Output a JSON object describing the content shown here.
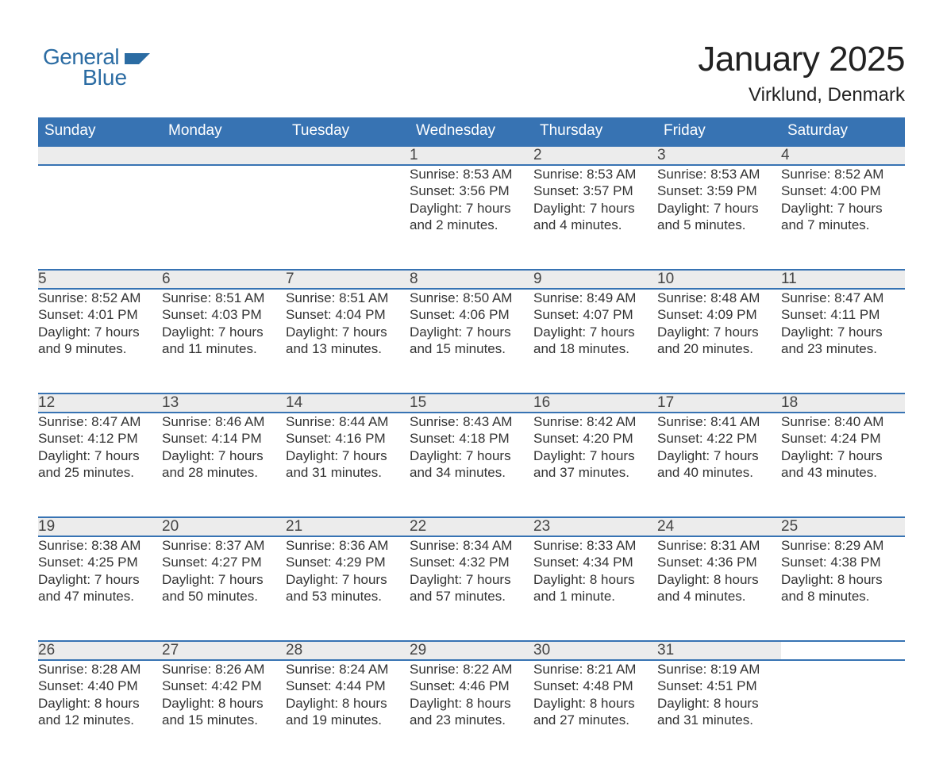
{
  "logo": {
    "line1": "General",
    "line2": "Blue",
    "color": "#2b6ca3"
  },
  "title": {
    "month_year": "January 2025",
    "location": "Virklund, Denmark"
  },
  "colors": {
    "header_bg": "#3773b3",
    "header_text": "#ffffff",
    "row_border": "#3773b3",
    "daynum_bg": "#ececec",
    "body_text": "#333333",
    "title_text": "#222222",
    "page_bg": "#ffffff"
  },
  "typography": {
    "title_fontsize": 44,
    "location_fontsize": 24,
    "header_fontsize": 19,
    "daynum_fontsize": 19,
    "detail_fontsize": 17
  },
  "calendar": {
    "type": "table",
    "columns": [
      "Sunday",
      "Monday",
      "Tuesday",
      "Wednesday",
      "Thursday",
      "Friday",
      "Saturday"
    ],
    "weeks": [
      [
        null,
        null,
        null,
        {
          "n": "1",
          "sr": "Sunrise: 8:53 AM",
          "ss": "Sunset: 3:56 PM",
          "d1": "Daylight: 7 hours",
          "d2": "and 2 minutes."
        },
        {
          "n": "2",
          "sr": "Sunrise: 8:53 AM",
          "ss": "Sunset: 3:57 PM",
          "d1": "Daylight: 7 hours",
          "d2": "and 4 minutes."
        },
        {
          "n": "3",
          "sr": "Sunrise: 8:53 AM",
          "ss": "Sunset: 3:59 PM",
          "d1": "Daylight: 7 hours",
          "d2": "and 5 minutes."
        },
        {
          "n": "4",
          "sr": "Sunrise: 8:52 AM",
          "ss": "Sunset: 4:00 PM",
          "d1": "Daylight: 7 hours",
          "d2": "and 7 minutes."
        }
      ],
      [
        {
          "n": "5",
          "sr": "Sunrise: 8:52 AM",
          "ss": "Sunset: 4:01 PM",
          "d1": "Daylight: 7 hours",
          "d2": "and 9 minutes."
        },
        {
          "n": "6",
          "sr": "Sunrise: 8:51 AM",
          "ss": "Sunset: 4:03 PM",
          "d1": "Daylight: 7 hours",
          "d2": "and 11 minutes."
        },
        {
          "n": "7",
          "sr": "Sunrise: 8:51 AM",
          "ss": "Sunset: 4:04 PM",
          "d1": "Daylight: 7 hours",
          "d2": "and 13 minutes."
        },
        {
          "n": "8",
          "sr": "Sunrise: 8:50 AM",
          "ss": "Sunset: 4:06 PM",
          "d1": "Daylight: 7 hours",
          "d2": "and 15 minutes."
        },
        {
          "n": "9",
          "sr": "Sunrise: 8:49 AM",
          "ss": "Sunset: 4:07 PM",
          "d1": "Daylight: 7 hours",
          "d2": "and 18 minutes."
        },
        {
          "n": "10",
          "sr": "Sunrise: 8:48 AM",
          "ss": "Sunset: 4:09 PM",
          "d1": "Daylight: 7 hours",
          "d2": "and 20 minutes."
        },
        {
          "n": "11",
          "sr": "Sunrise: 8:47 AM",
          "ss": "Sunset: 4:11 PM",
          "d1": "Daylight: 7 hours",
          "d2": "and 23 minutes."
        }
      ],
      [
        {
          "n": "12",
          "sr": "Sunrise: 8:47 AM",
          "ss": "Sunset: 4:12 PM",
          "d1": "Daylight: 7 hours",
          "d2": "and 25 minutes."
        },
        {
          "n": "13",
          "sr": "Sunrise: 8:46 AM",
          "ss": "Sunset: 4:14 PM",
          "d1": "Daylight: 7 hours",
          "d2": "and 28 minutes."
        },
        {
          "n": "14",
          "sr": "Sunrise: 8:44 AM",
          "ss": "Sunset: 4:16 PM",
          "d1": "Daylight: 7 hours",
          "d2": "and 31 minutes."
        },
        {
          "n": "15",
          "sr": "Sunrise: 8:43 AM",
          "ss": "Sunset: 4:18 PM",
          "d1": "Daylight: 7 hours",
          "d2": "and 34 minutes."
        },
        {
          "n": "16",
          "sr": "Sunrise: 8:42 AM",
          "ss": "Sunset: 4:20 PM",
          "d1": "Daylight: 7 hours",
          "d2": "and 37 minutes."
        },
        {
          "n": "17",
          "sr": "Sunrise: 8:41 AM",
          "ss": "Sunset: 4:22 PM",
          "d1": "Daylight: 7 hours",
          "d2": "and 40 minutes."
        },
        {
          "n": "18",
          "sr": "Sunrise: 8:40 AM",
          "ss": "Sunset: 4:24 PM",
          "d1": "Daylight: 7 hours",
          "d2": "and 43 minutes."
        }
      ],
      [
        {
          "n": "19",
          "sr": "Sunrise: 8:38 AM",
          "ss": "Sunset: 4:25 PM",
          "d1": "Daylight: 7 hours",
          "d2": "and 47 minutes."
        },
        {
          "n": "20",
          "sr": "Sunrise: 8:37 AM",
          "ss": "Sunset: 4:27 PM",
          "d1": "Daylight: 7 hours",
          "d2": "and 50 minutes."
        },
        {
          "n": "21",
          "sr": "Sunrise: 8:36 AM",
          "ss": "Sunset: 4:29 PM",
          "d1": "Daylight: 7 hours",
          "d2": "and 53 minutes."
        },
        {
          "n": "22",
          "sr": "Sunrise: 8:34 AM",
          "ss": "Sunset: 4:32 PM",
          "d1": "Daylight: 7 hours",
          "d2": "and 57 minutes."
        },
        {
          "n": "23",
          "sr": "Sunrise: 8:33 AM",
          "ss": "Sunset: 4:34 PM",
          "d1": "Daylight: 8 hours",
          "d2": "and 1 minute."
        },
        {
          "n": "24",
          "sr": "Sunrise: 8:31 AM",
          "ss": "Sunset: 4:36 PM",
          "d1": "Daylight: 8 hours",
          "d2": "and 4 minutes."
        },
        {
          "n": "25",
          "sr": "Sunrise: 8:29 AM",
          "ss": "Sunset: 4:38 PM",
          "d1": "Daylight: 8 hours",
          "d2": "and 8 minutes."
        }
      ],
      [
        {
          "n": "26",
          "sr": "Sunrise: 8:28 AM",
          "ss": "Sunset: 4:40 PM",
          "d1": "Daylight: 8 hours",
          "d2": "and 12 minutes."
        },
        {
          "n": "27",
          "sr": "Sunrise: 8:26 AM",
          "ss": "Sunset: 4:42 PM",
          "d1": "Daylight: 8 hours",
          "d2": "and 15 minutes."
        },
        {
          "n": "28",
          "sr": "Sunrise: 8:24 AM",
          "ss": "Sunset: 4:44 PM",
          "d1": "Daylight: 8 hours",
          "d2": "and 19 minutes."
        },
        {
          "n": "29",
          "sr": "Sunrise: 8:22 AM",
          "ss": "Sunset: 4:46 PM",
          "d1": "Daylight: 8 hours",
          "d2": "and 23 minutes."
        },
        {
          "n": "30",
          "sr": "Sunrise: 8:21 AM",
          "ss": "Sunset: 4:48 PM",
          "d1": "Daylight: 8 hours",
          "d2": "and 27 minutes."
        },
        {
          "n": "31",
          "sr": "Sunrise: 8:19 AM",
          "ss": "Sunset: 4:51 PM",
          "d1": "Daylight: 8 hours",
          "d2": "and 31 minutes."
        },
        null
      ]
    ]
  }
}
